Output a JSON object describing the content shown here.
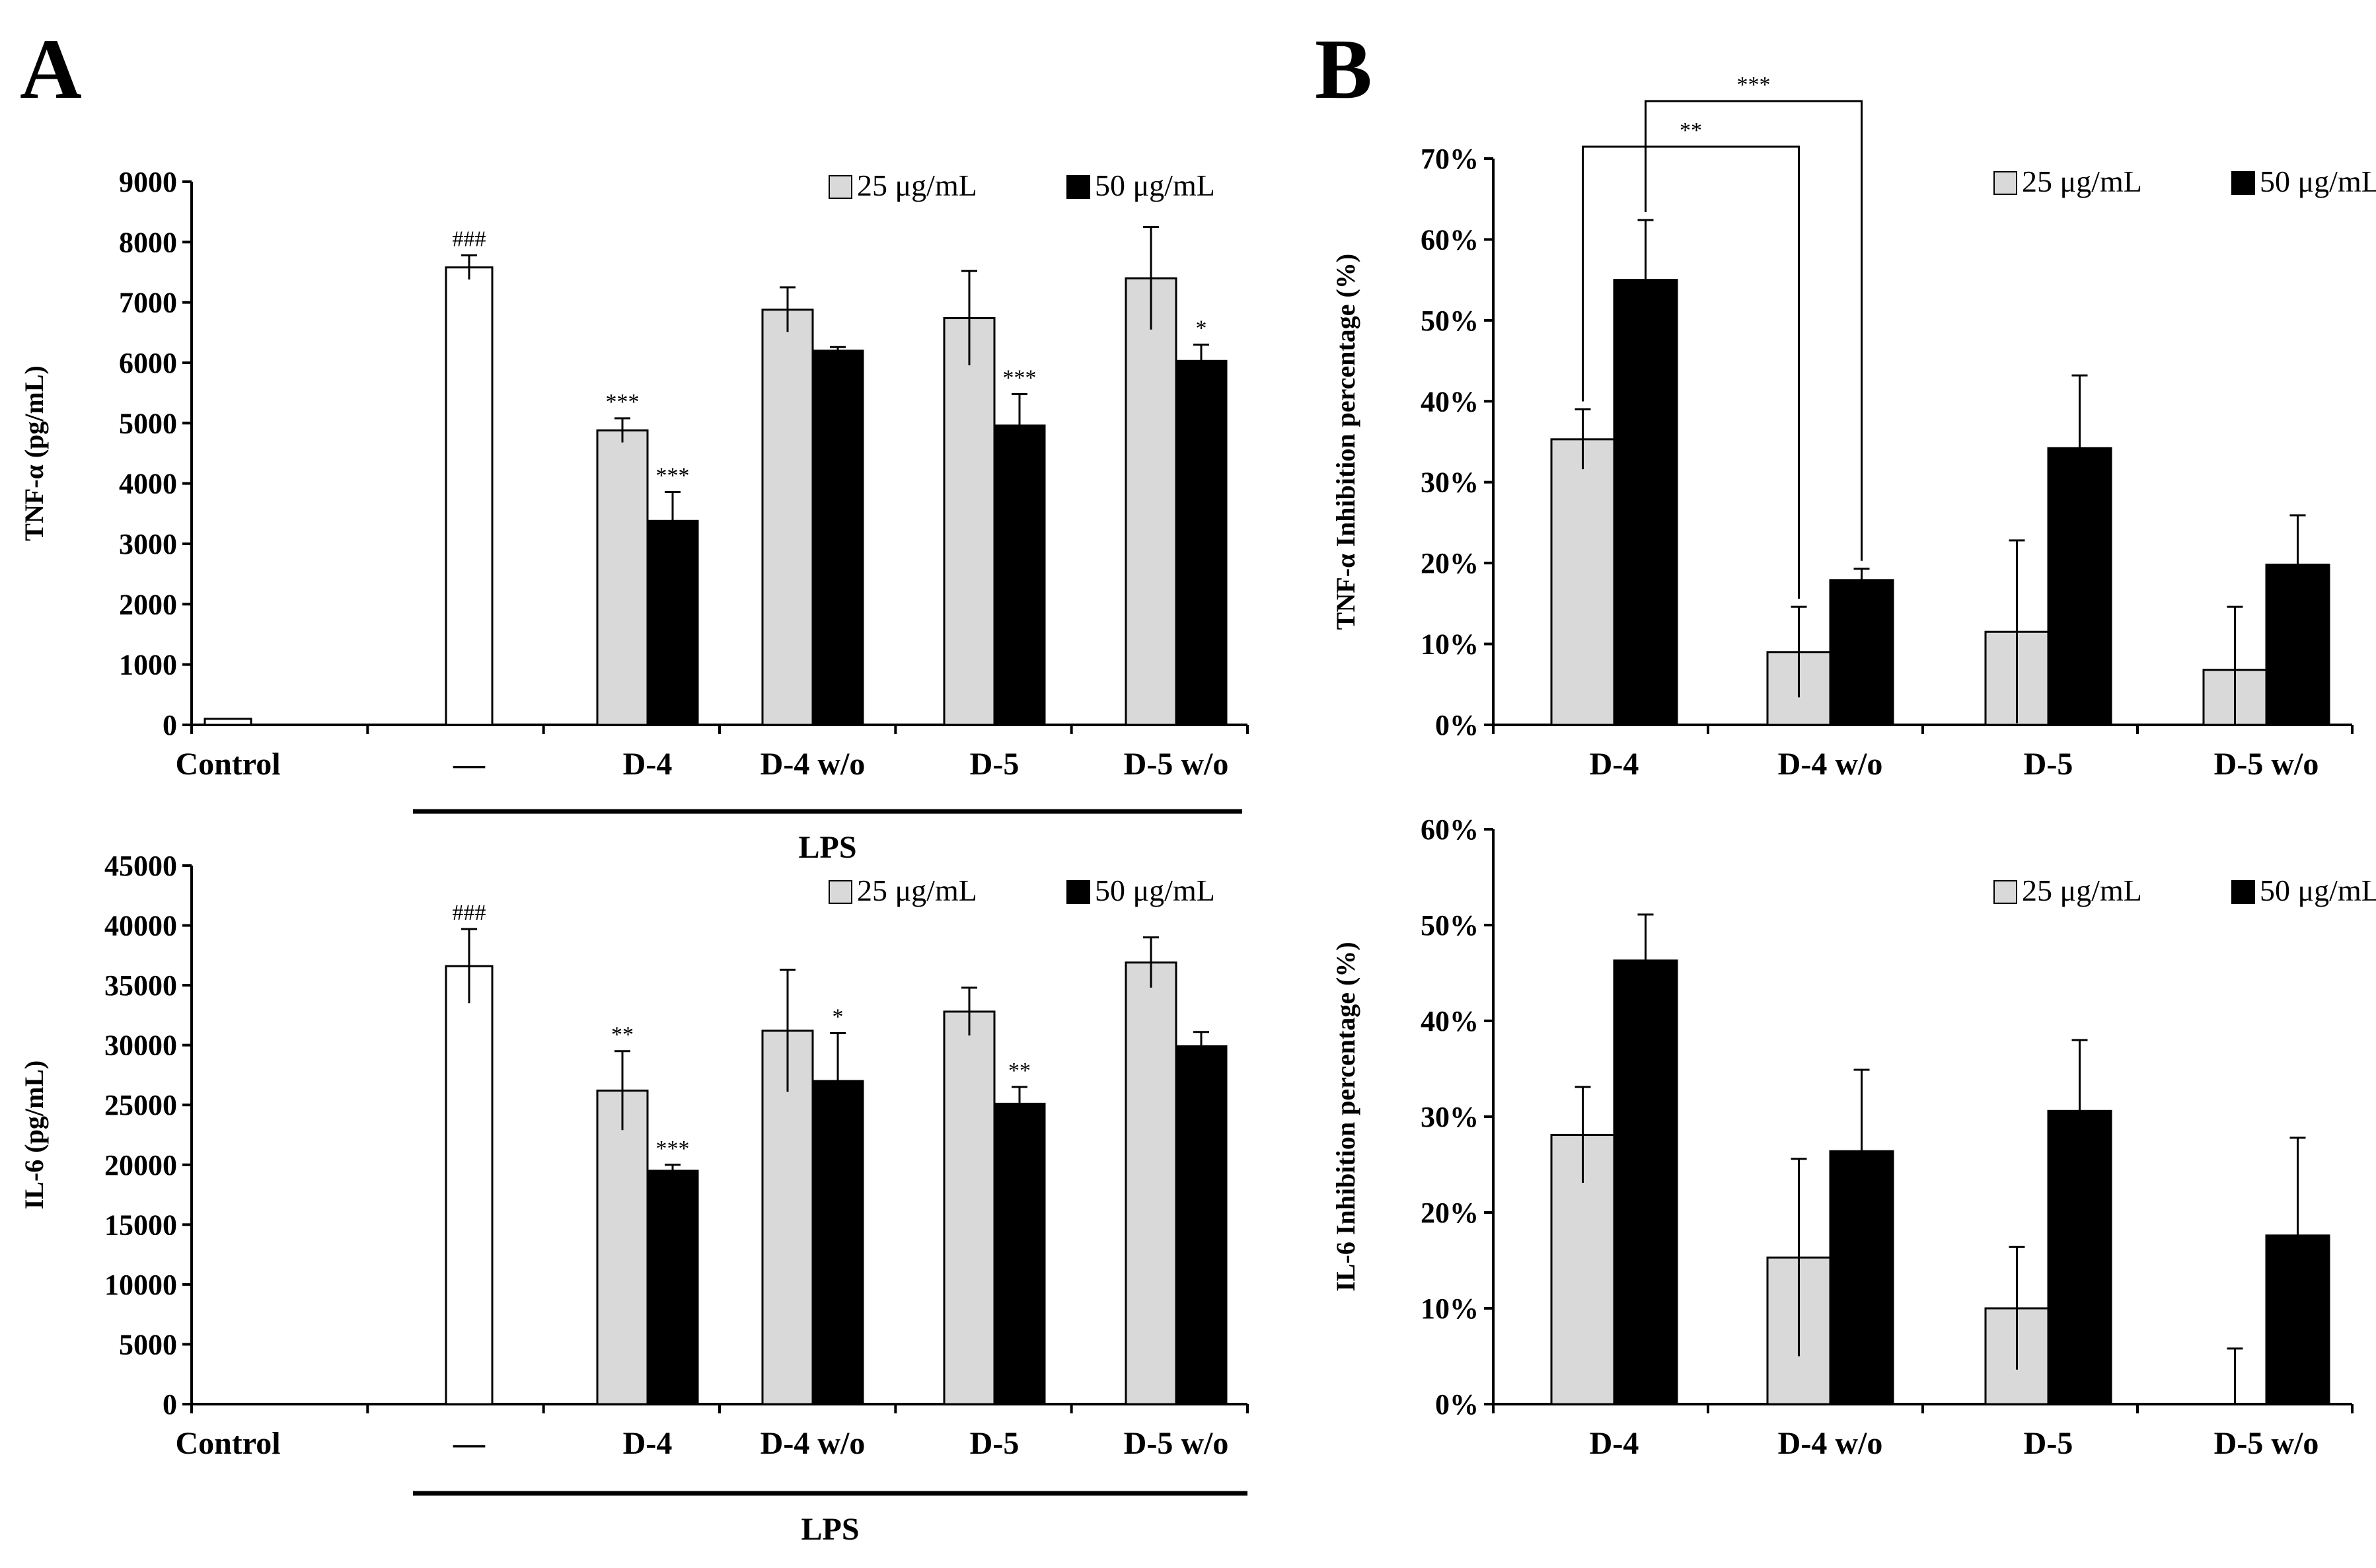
{
  "panel_labels": {
    "a": "A",
    "b": "B"
  },
  "legend": {
    "low": "25 μg/mL",
    "high": "50 μg/mL"
  },
  "lps_label": "LPS",
  "colors": {
    "low": "#d9d9d9",
    "high": "#000000",
    "control": "#ffffff"
  },
  "chart_data": [
    {
      "id": "a-top",
      "type": "bar",
      "ylabel": "TNF-α (pg/mL)",
      "ylim": [
        0,
        9000
      ],
      "yticks": [
        0,
        1000,
        2000,
        3000,
        4000,
        5000,
        6000,
        7000,
        8000,
        9000
      ],
      "categories": [
        "Control",
        "—",
        "D-4",
        "D-4 w/o",
        "D-5",
        "D-5 w/o"
      ],
      "single": [
        {
          "category": "Control",
          "value": 100,
          "error": 0,
          "sig": ""
        },
        {
          "category": "—",
          "value": 7580,
          "error": 200,
          "sig": "###"
        }
      ],
      "series": [
        {
          "name": "25 μg/mL",
          "values": [
            null,
            null,
            4880,
            6880,
            6740,
            7400
          ],
          "errors": [
            0,
            0,
            200,
            370,
            780,
            850
          ],
          "sig": [
            "",
            "",
            "***",
            "",
            "",
            ""
          ]
        },
        {
          "name": "50 μg/mL",
          "values": [
            null,
            null,
            3380,
            6200,
            4960,
            6030
          ],
          "errors": [
            0,
            0,
            480,
            60,
            520,
            270
          ],
          "sig": [
            "",
            "",
            "***",
            "",
            "***",
            "*"
          ]
        }
      ]
    },
    {
      "id": "a-bottom",
      "type": "bar",
      "ylabel": "IL-6 (pg/mL)",
      "ylim": [
        0,
        45000
      ],
      "yticks": [
        0,
        5000,
        10000,
        15000,
        20000,
        25000,
        30000,
        35000,
        40000,
        45000
      ],
      "categories": [
        "Control",
        "—",
        "D-4",
        "D-4 w/o",
        "D-5",
        "D-5 w/o"
      ],
      "single": [
        {
          "category": "Control",
          "value": 0,
          "error": 0,
          "sig": ""
        },
        {
          "category": "—",
          "value": 36600,
          "error": 3100,
          "sig": "###"
        }
      ],
      "series": [
        {
          "name": "25 μg/mL",
          "values": [
            null,
            null,
            26200,
            31200,
            32800,
            36900
          ],
          "errors": [
            0,
            0,
            3300,
            5100,
            2000,
            2100
          ],
          "sig": [
            "",
            "",
            "**",
            "",
            "",
            ""
          ]
        },
        {
          "name": "50 μg/mL",
          "values": [
            null,
            null,
            19500,
            27000,
            25100,
            29900
          ],
          "errors": [
            0,
            0,
            500,
            4000,
            1400,
            1200
          ],
          "sig": [
            "",
            "",
            "***",
            "*",
            "**",
            ""
          ]
        }
      ]
    },
    {
      "id": "b-top",
      "type": "bar",
      "ylabel": "TNF-α Inhibition percentage (%)",
      "ylim": [
        0,
        70
      ],
      "yticks": [
        0,
        10,
        20,
        30,
        40,
        50,
        60,
        70
      ],
      "tick_suffix": "%",
      "categories": [
        "D-4",
        "D-4 w/o",
        "D-5",
        "D-5 w/o"
      ],
      "series": [
        {
          "name": "25 μg/mL",
          "values": [
            35.3,
            9.0,
            11.5,
            6.8
          ],
          "errors": [
            3.7,
            5.6,
            11.3,
            7.8
          ]
        },
        {
          "name": "50 μg/mL",
          "values": [
            55.0,
            17.9,
            34.2,
            19.8
          ],
          "errors": [
            7.4,
            1.4,
            9.0,
            6.1
          ]
        }
      ],
      "comparisons": [
        {
          "label": "**",
          "from": "D-4 / 25 μg/mL",
          "to": "D-4 w/o / 25 μg/mL"
        },
        {
          "label": "***",
          "from": "D-4 / 50 μg/mL",
          "to": "D-4 w/o / 50 μg/mL"
        }
      ]
    },
    {
      "id": "b-bottom",
      "type": "bar",
      "ylabel": "IL-6 Inhibition percentage (%)",
      "ylim": [
        0,
        60
      ],
      "yticks": [
        0,
        10,
        20,
        30,
        40,
        50,
        60
      ],
      "tick_suffix": "%",
      "categories": [
        "D-4",
        "D-4 w/o",
        "D-5",
        "D-5 w/o"
      ],
      "series": [
        {
          "name": "25 μg/mL",
          "values": [
            28.1,
            15.3,
            10.0,
            0.0
          ],
          "errors": [
            5.0,
            10.3,
            6.4,
            5.8
          ]
        },
        {
          "name": "50 μg/mL",
          "values": [
            46.3,
            26.4,
            30.6,
            17.6
          ],
          "errors": [
            4.8,
            8.5,
            7.4,
            10.2
          ]
        }
      ]
    }
  ]
}
